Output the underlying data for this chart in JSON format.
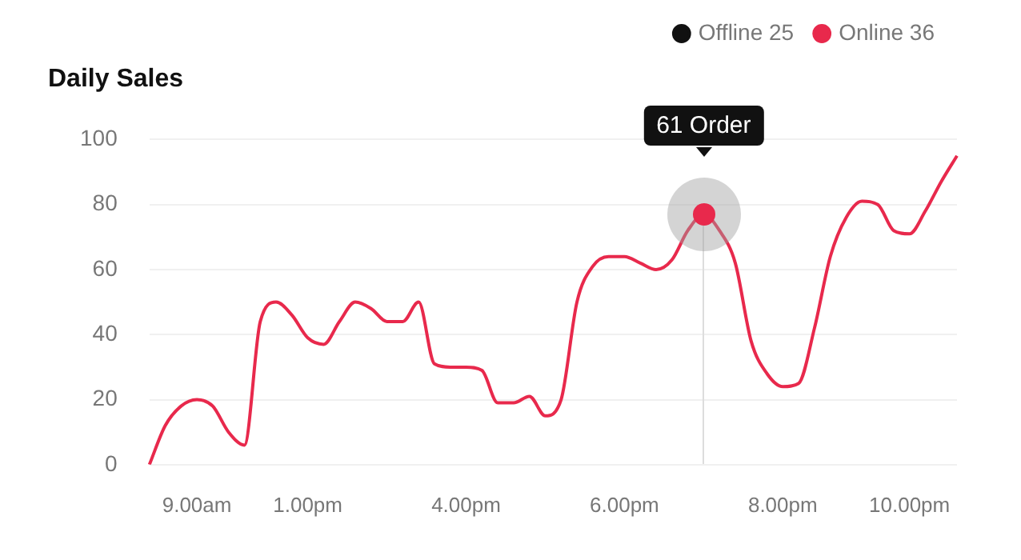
{
  "chart_data": {
    "type": "line",
    "title": "Daily Sales",
    "categories": [
      null,
      null,
      null,
      "9.00am",
      null,
      null,
      null,
      null,
      null,
      null,
      "1.00pm",
      null,
      null,
      null,
      null,
      null,
      null,
      null,
      null,
      null,
      "4.00pm",
      null,
      null,
      null,
      null,
      null,
      null,
      null,
      null,
      null,
      "6.00pm",
      null,
      null,
      null,
      null,
      null,
      null,
      null,
      null,
      null,
      "8.00pm",
      null,
      null,
      null,
      null,
      null,
      null,
      null,
      "10.00pm",
      null,
      null,
      null
    ],
    "series": [
      {
        "name": "Offline 25",
        "color": "#111111",
        "values": [
          null,
          null,
          null,
          null,
          null,
          null,
          null,
          null,
          null,
          null,
          null,
          null,
          null,
          null,
          null,
          null,
          null,
          null,
          null,
          null,
          null,
          null,
          null,
          null,
          null,
          null,
          null,
          null,
          null,
          null,
          null,
          null,
          null,
          null,
          null,
          null,
          null,
          null,
          null,
          null,
          null,
          null,
          null,
          null,
          null,
          null,
          null,
          null,
          null,
          null,
          null,
          null
        ]
      },
      {
        "name": "Online 36",
        "color": "#e8294c",
        "values": [
          0,
          12,
          18,
          20,
          18,
          10,
          6,
          44,
          50,
          46,
          39,
          37,
          44,
          50,
          48,
          44,
          44,
          50,
          31,
          30,
          30,
          29,
          19,
          19,
          21,
          15,
          20,
          50,
          61,
          64,
          64,
          62,
          60,
          63,
          72,
          77,
          72,
          62,
          38,
          28,
          24,
          25,
          42,
          64,
          76,
          81,
          80,
          72,
          71,
          78,
          87,
          95
        ]
      }
    ],
    "ylim": [
      0,
      100
    ],
    "yticks": [
      0,
      20,
      40,
      60,
      80,
      100
    ],
    "grid": "y",
    "legend": "top right",
    "marker": "none",
    "annotations": [
      "61 Order"
    ]
  }
}
